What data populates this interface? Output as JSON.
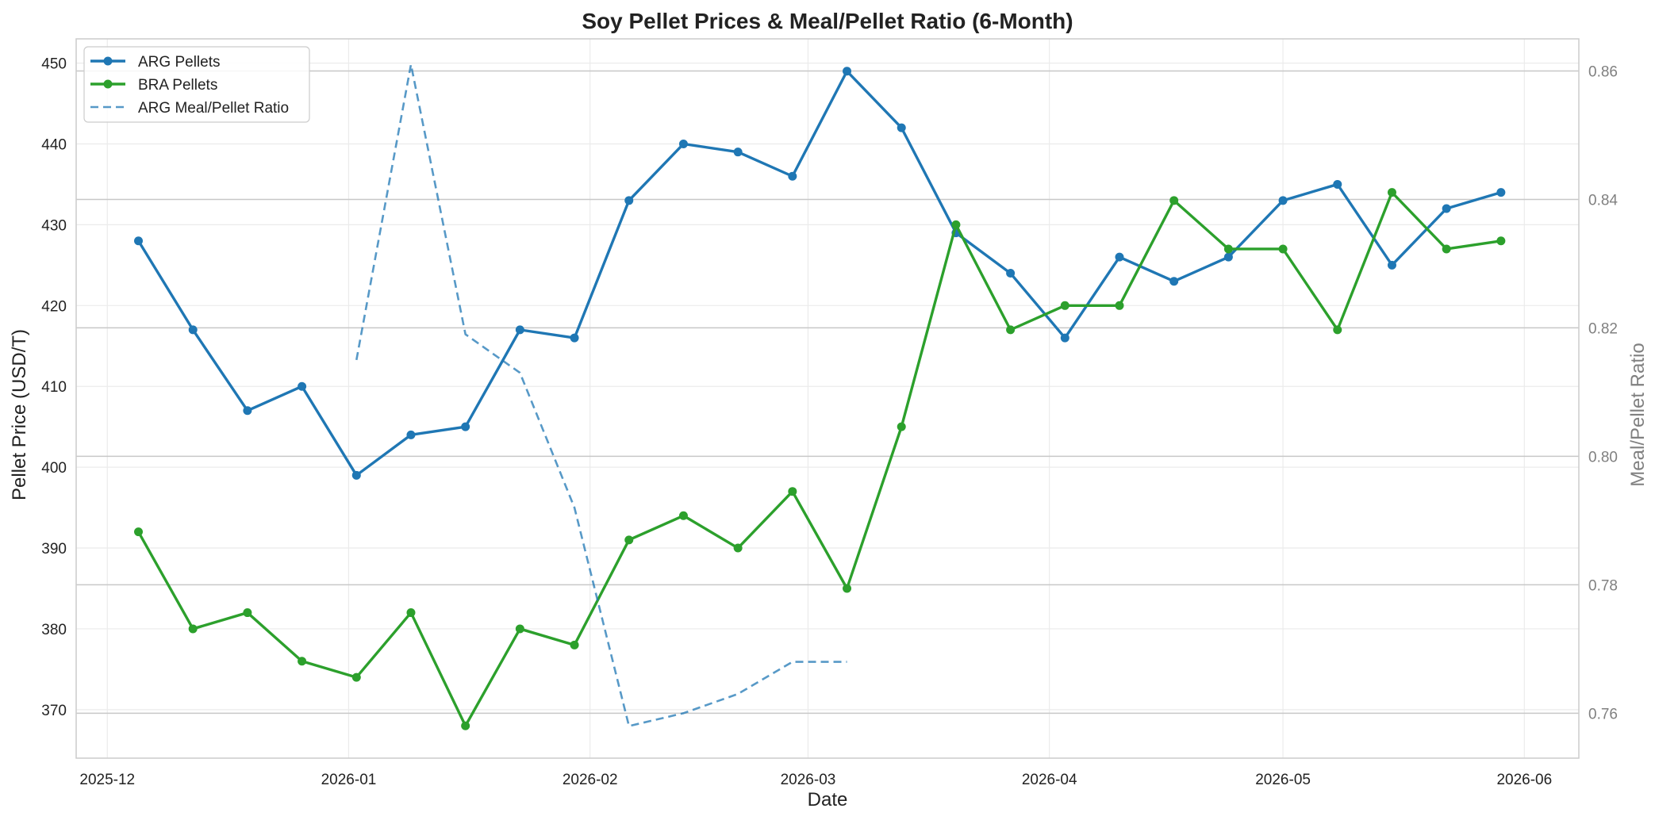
{
  "chart_data": {
    "type": "line",
    "title": "Soy Pellet Prices & Meal/Pellet Ratio (6-Month)",
    "xlabel": "Date",
    "ylabel": "Pellet Price (USD/T)",
    "ylabel_right": "Meal/Pellet Ratio",
    "xlim": [
      "2025-11-27",
      "2026-06-08"
    ],
    "ylim": [
      364,
      453
    ],
    "ylim_right": [
      0.753,
      0.865
    ],
    "x_ticks": [
      "2025-12-01",
      "2026-01-01",
      "2026-02-01",
      "2026-03-01",
      "2026-04-01",
      "2026-05-01",
      "2026-06-01"
    ],
    "x_tick_labels": [
      "2025-12",
      "2026-01",
      "2026-02",
      "2026-03",
      "2026-04",
      "2026-05",
      "2026-06"
    ],
    "y_ticks": [
      370,
      380,
      390,
      400,
      410,
      420,
      430,
      440,
      450
    ],
    "y_ticks_right": [
      0.76,
      0.78,
      0.8,
      0.82,
      0.84,
      0.86
    ],
    "y_tick_labels_right": [
      "0.76",
      "0.78",
      "0.80",
      "0.82",
      "0.84",
      "0.86"
    ],
    "grid": true,
    "legend_position": "top-left",
    "x": [
      "2025-12-05",
      "2025-12-12",
      "2025-12-19",
      "2025-12-26",
      "2026-01-02",
      "2026-01-09",
      "2026-01-16",
      "2026-01-23",
      "2026-01-30",
      "2026-02-06",
      "2026-02-13",
      "2026-02-20",
      "2026-02-27",
      "2026-03-06",
      "2026-03-13",
      "2026-03-20",
      "2026-03-27",
      "2026-04-03",
      "2026-04-10",
      "2026-04-17",
      "2026-04-24",
      "2026-05-01",
      "2026-05-08",
      "2026-05-15",
      "2026-05-22",
      "2026-05-29"
    ],
    "series": [
      {
        "name": "ARG Pellets",
        "axis": "left",
        "color": "#1f77b4",
        "style": "solid-markers",
        "values": [
          428,
          417,
          407,
          410,
          399,
          404,
          405,
          417,
          416,
          433,
          440,
          439,
          436,
          449,
          442,
          429,
          424,
          416,
          426,
          423,
          426,
          433,
          435,
          425,
          432,
          434
        ]
      },
      {
        "name": "BRA Pellets",
        "axis": "left",
        "color": "#2ca02c",
        "style": "solid-markers",
        "values": [
          392,
          380,
          382,
          376,
          374,
          382,
          368,
          380,
          378,
          391,
          394,
          390,
          397,
          385,
          405,
          430,
          417,
          420,
          420,
          433,
          427,
          427,
          417,
          434,
          427,
          428
        ]
      },
      {
        "name": "ARG Meal/Pellet Ratio",
        "axis": "right",
        "color": "#1f77b4",
        "style": "dashed",
        "values": [
          null,
          null,
          null,
          null,
          0.815,
          0.861,
          0.819,
          0.813,
          0.792,
          0.758,
          0.76,
          0.763,
          0.768,
          0.768,
          null,
          null,
          null,
          null,
          null,
          null,
          null,
          null,
          null,
          null,
          null,
          null
        ]
      }
    ]
  }
}
